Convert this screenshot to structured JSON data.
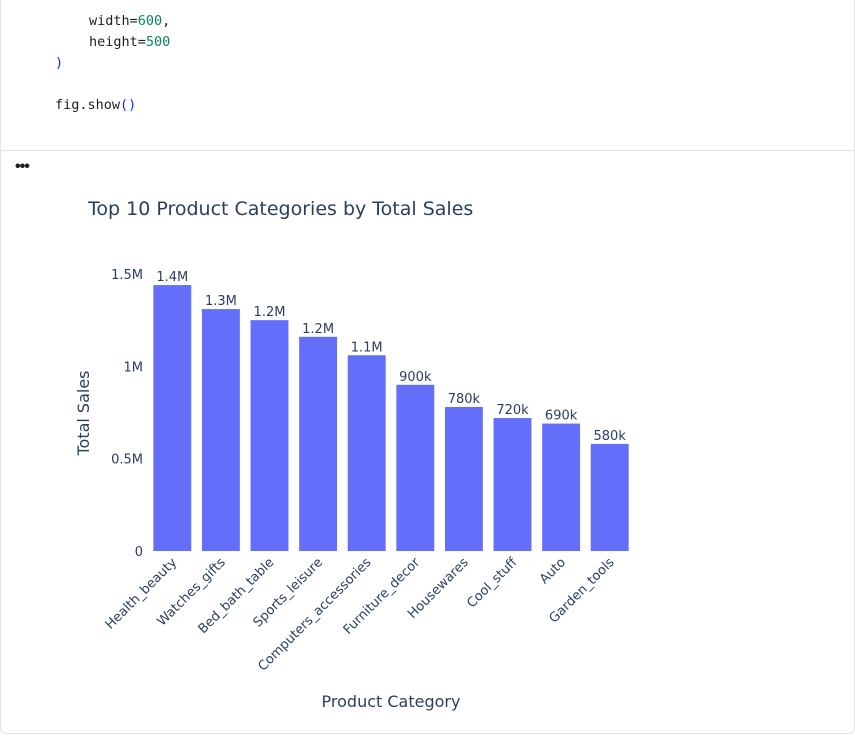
{
  "code": {
    "line1_name": "width=",
    "line1_value": "600",
    "line1_suffix": ",",
    "line2_name": "height=",
    "line2_value": "500",
    "line3": ")",
    "line4_name": "fig.show",
    "line4_parens": "()"
  },
  "output": {
    "menu_label": "•••"
  },
  "colors": {
    "bar": "#636efa",
    "text": "#2a3f5f"
  },
  "chart_data": {
    "type": "bar",
    "title": "Top 10 Product Categories by Total Sales",
    "xlabel": "Product Category",
    "ylabel": "Total Sales",
    "ylim": [
      0,
      1500000
    ],
    "yticks": [
      0,
      500000,
      1000000,
      1500000
    ],
    "ytick_labels": [
      "0",
      "0.5M",
      "1M",
      "1.5M"
    ],
    "categories": [
      "Health_beauty",
      "Watches_gifts",
      "Bed_bath_table",
      "Sports_leisure",
      "Computers_accessories",
      "Furniture_decor",
      "Housewares",
      "Cool_stuff",
      "Auto",
      "Garden_tools"
    ],
    "values": [
      1440000,
      1310000,
      1250000,
      1160000,
      1060000,
      900000,
      780000,
      720000,
      690000,
      580000
    ],
    "value_labels": [
      "1.4M",
      "1.3M",
      "1.2M",
      "1.2M",
      "1.1M",
      "900k",
      "780k",
      "720k",
      "690k",
      "580k"
    ],
    "grid": false
  }
}
